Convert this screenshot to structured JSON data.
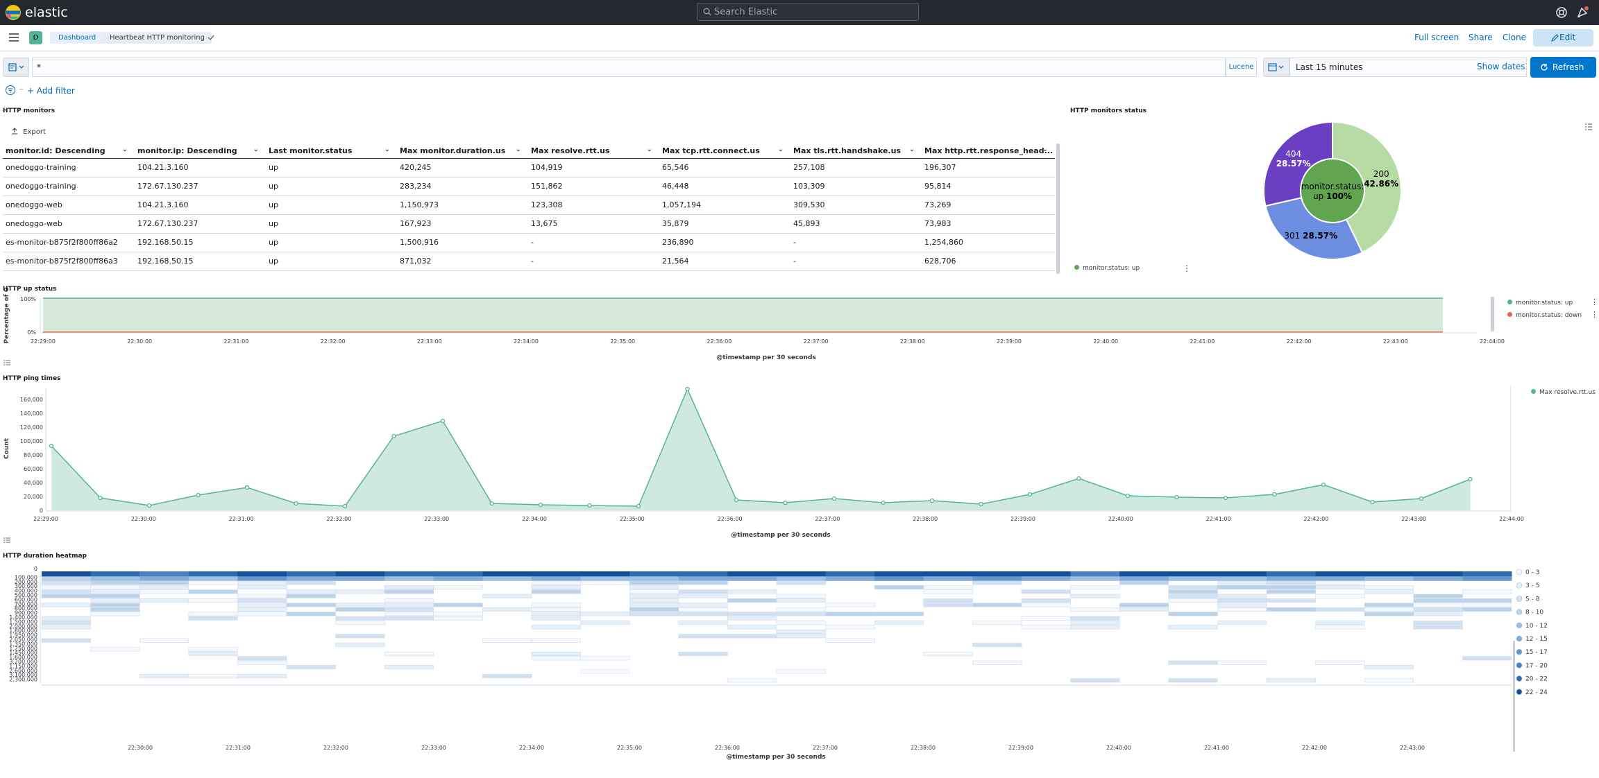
{
  "header": {
    "brand": "elastic",
    "search_placeholder": "Search Elastic",
    "space_initial": "D",
    "breadcrumb": [
      "Dashboard",
      "Heartbeat HTTP monitoring"
    ],
    "actions": {
      "full_screen": "Full screen",
      "share": "Share",
      "clone": "Clone",
      "edit": "Edit"
    }
  },
  "query_bar": {
    "query": "*",
    "language": "Lucene",
    "time_range": "Last 15 minutes",
    "show_dates": "Show dates",
    "refresh": "Refresh"
  },
  "filter_bar": {
    "add_filter": "+ Add filter"
  },
  "icons": [
    "elastic-logo-icon",
    "search-icon",
    "help-icon",
    "newsfeed-icon",
    "menu-icon",
    "check-icon",
    "pencil-icon",
    "saved-query-icon",
    "calendar-icon",
    "refresh-icon",
    "filter-icon",
    "export-icon",
    "legend-toggle-icon",
    "options-icon"
  ],
  "colors": {
    "accent": "#0077cc",
    "nav": "#25282f",
    "up": "#54b399",
    "down": "#e7664c"
  },
  "monitors_table": {
    "title": "HTTP monitors",
    "export": "Export",
    "columns": [
      "monitor.id: Descending",
      "monitor.ip: Descending",
      "Last monitor.status",
      "Max monitor.duration.us",
      "Max resolve.rtt.us",
      "Max tcp.rtt.connect.us",
      "Max tls.rtt.handshake.us",
      "Max http.rtt.response_head..."
    ],
    "rows": [
      [
        "onedoggo-training",
        "104.21.3.160",
        "up",
        "420,245",
        "104,919",
        "65,546",
        "257,108",
        "196,307"
      ],
      [
        "onedoggo-training",
        "172.67.130.237",
        "up",
        "283,234",
        "151,862",
        "46,448",
        "103,309",
        "95,814"
      ],
      [
        "onedoggo-web",
        "104.21.3.160",
        "up",
        "1,150,973",
        "123,308",
        "1,057,194",
        "309,530",
        "73,269"
      ],
      [
        "onedoggo-web",
        "172.67.130.237",
        "up",
        "167,923",
        "13,675",
        "35,879",
        "45,893",
        "73,983"
      ],
      [
        "es-monitor-b875f2f800ff86a2",
        "192.168.50.15",
        "up",
        "1,500,916",
        "-",
        "236,890",
        "-",
        "1,254,860"
      ],
      [
        "es-monitor-b875f2f800ff86a3",
        "192.168.50.15",
        "up",
        "871,032",
        "-",
        "21,564",
        "-",
        "628,706"
      ]
    ]
  },
  "status_pie": {
    "title": "HTTP monitors status",
    "legend": "monitor.status: up",
    "inner_label": [
      "monitor.status:",
      "up",
      "100%"
    ],
    "slices": [
      {
        "label": "200",
        "pct": "42.86%",
        "value": 42.86,
        "color": "#b6dba5"
      },
      {
        "label": "301",
        "pct": "28.57%",
        "value": 28.57,
        "color": "#6d8de0"
      },
      {
        "label": "404",
        "pct": "28.57%",
        "value": 28.57,
        "color": "#6a3fc4"
      }
    ],
    "inner_color": "#62a551"
  },
  "up_status": {
    "title": "HTTP up status",
    "ylabel": "Percentage of C",
    "yticks": [
      "100%",
      "0%"
    ],
    "xticks": [
      "22:29:00",
      "22:30:00",
      "22:31:00",
      "22:32:00",
      "22:33:00",
      "22:34:00",
      "22:35:00",
      "22:36:00",
      "22:37:00",
      "22:38:00",
      "22:39:00",
      "22:40:00",
      "22:41:00",
      "22:42:00",
      "22:43:00",
      "22:44:00"
    ],
    "xlabel": "@timestamp per 30 seconds",
    "legend": [
      {
        "label": "monitor.status: up",
        "color": "#54b399"
      },
      {
        "label": "monitor.status: down",
        "color": "#e7664c"
      }
    ]
  },
  "chart_data": [
    {
      "type": "line",
      "title": "HTTP ping times",
      "ylabel": "Count",
      "xlabel": "@timestamp per 30 seconds",
      "ylim": [
        0,
        180000
      ],
      "yticks": [
        "0",
        "20,000",
        "40,000",
        "60,000",
        "80,000",
        "100,000",
        "120,000",
        "140,000",
        "160,000"
      ],
      "xticks": [
        "22:29:00",
        "22:30:00",
        "22:31:00",
        "22:32:00",
        "22:33:00",
        "22:34:00",
        "22:35:00",
        "22:36:00",
        "22:37:00",
        "22:38:00",
        "22:39:00",
        "22:40:00",
        "22:41:00",
        "22:42:00",
        "22:43:00",
        "22:44:00"
      ],
      "series": [
        {
          "name": "Max resolve.rtt.us",
          "color": "#54b399",
          "values": [
            93000,
            18000,
            7000,
            22000,
            33000,
            10000,
            6000,
            107000,
            129000,
            10000,
            8000,
            7000,
            6000,
            175000,
            15000,
            11000,
            17000,
            11000,
            14000,
            9000,
            23000,
            46000,
            21000,
            19000,
            18000,
            23000,
            37000,
            12000,
            17000,
            45000
          ]
        }
      ]
    },
    {
      "type": "heatmap",
      "title": "HTTP duration heatmap",
      "xlabel": "@timestamp per 30 seconds",
      "xticks": [
        "22:30:00",
        "22:31:00",
        "22:32:00",
        "22:33:00",
        "22:34:00",
        "22:35:00",
        "22:36:00",
        "22:37:00",
        "22:38:00",
        "22:39:00",
        "22:40:00",
        "22:41:00",
        "22:42:00",
        "22:43:00"
      ],
      "ylabels": [
        "0",
        "100,000",
        "200,000",
        "300,000",
        "400,000",
        "500,000",
        "600,000",
        "700,000",
        "800,000",
        "900,000",
        "1,400,000",
        "1,500,000",
        "2,000,000",
        "1,800,000",
        "1,950,000",
        "2,050,000",
        "1,350,000",
        "1,250,000",
        "1,450,000",
        "1,600,000",
        "3,200,000",
        "1,150,000",
        "2,600,000",
        "3,100,000",
        "2,300,000"
      ],
      "legend": [
        {
          "label": "0 - 3",
          "color": "#f5f8fc"
        },
        {
          "label": "3 - 5",
          "color": "#e6eef8"
        },
        {
          "label": "5 - 8",
          "color": "#d3e2f2"
        },
        {
          "label": "8 - 10",
          "color": "#bcd3ea"
        },
        {
          "label": "10 - 12",
          "color": "#9fc0e0"
        },
        {
          "label": "12 - 15",
          "color": "#82acd6"
        },
        {
          "label": "15 - 17",
          "color": "#6597cb"
        },
        {
          "label": "17 - 20",
          "color": "#4a81bf"
        },
        {
          "label": "20 - 22",
          "color": "#2e6aae"
        },
        {
          "label": "22 - 24",
          "color": "#15519a"
        }
      ],
      "columns": 30,
      "row0_levels": [
        9,
        8,
        7,
        8,
        9,
        8,
        9,
        8,
        8,
        9,
        9,
        9,
        8,
        8,
        9,
        9,
        8,
        9,
        9,
        9,
        9,
        7,
        9,
        9,
        9,
        8,
        9,
        9,
        9,
        8
      ],
      "row1_levels": [
        3,
        4,
        5,
        4,
        6,
        5,
        5,
        4,
        5,
        4,
        5,
        4,
        4,
        5,
        5,
        4,
        5,
        6,
        5,
        6,
        5,
        4,
        5,
        4,
        4,
        5,
        5,
        4,
        5,
        6
      ]
    }
  ]
}
